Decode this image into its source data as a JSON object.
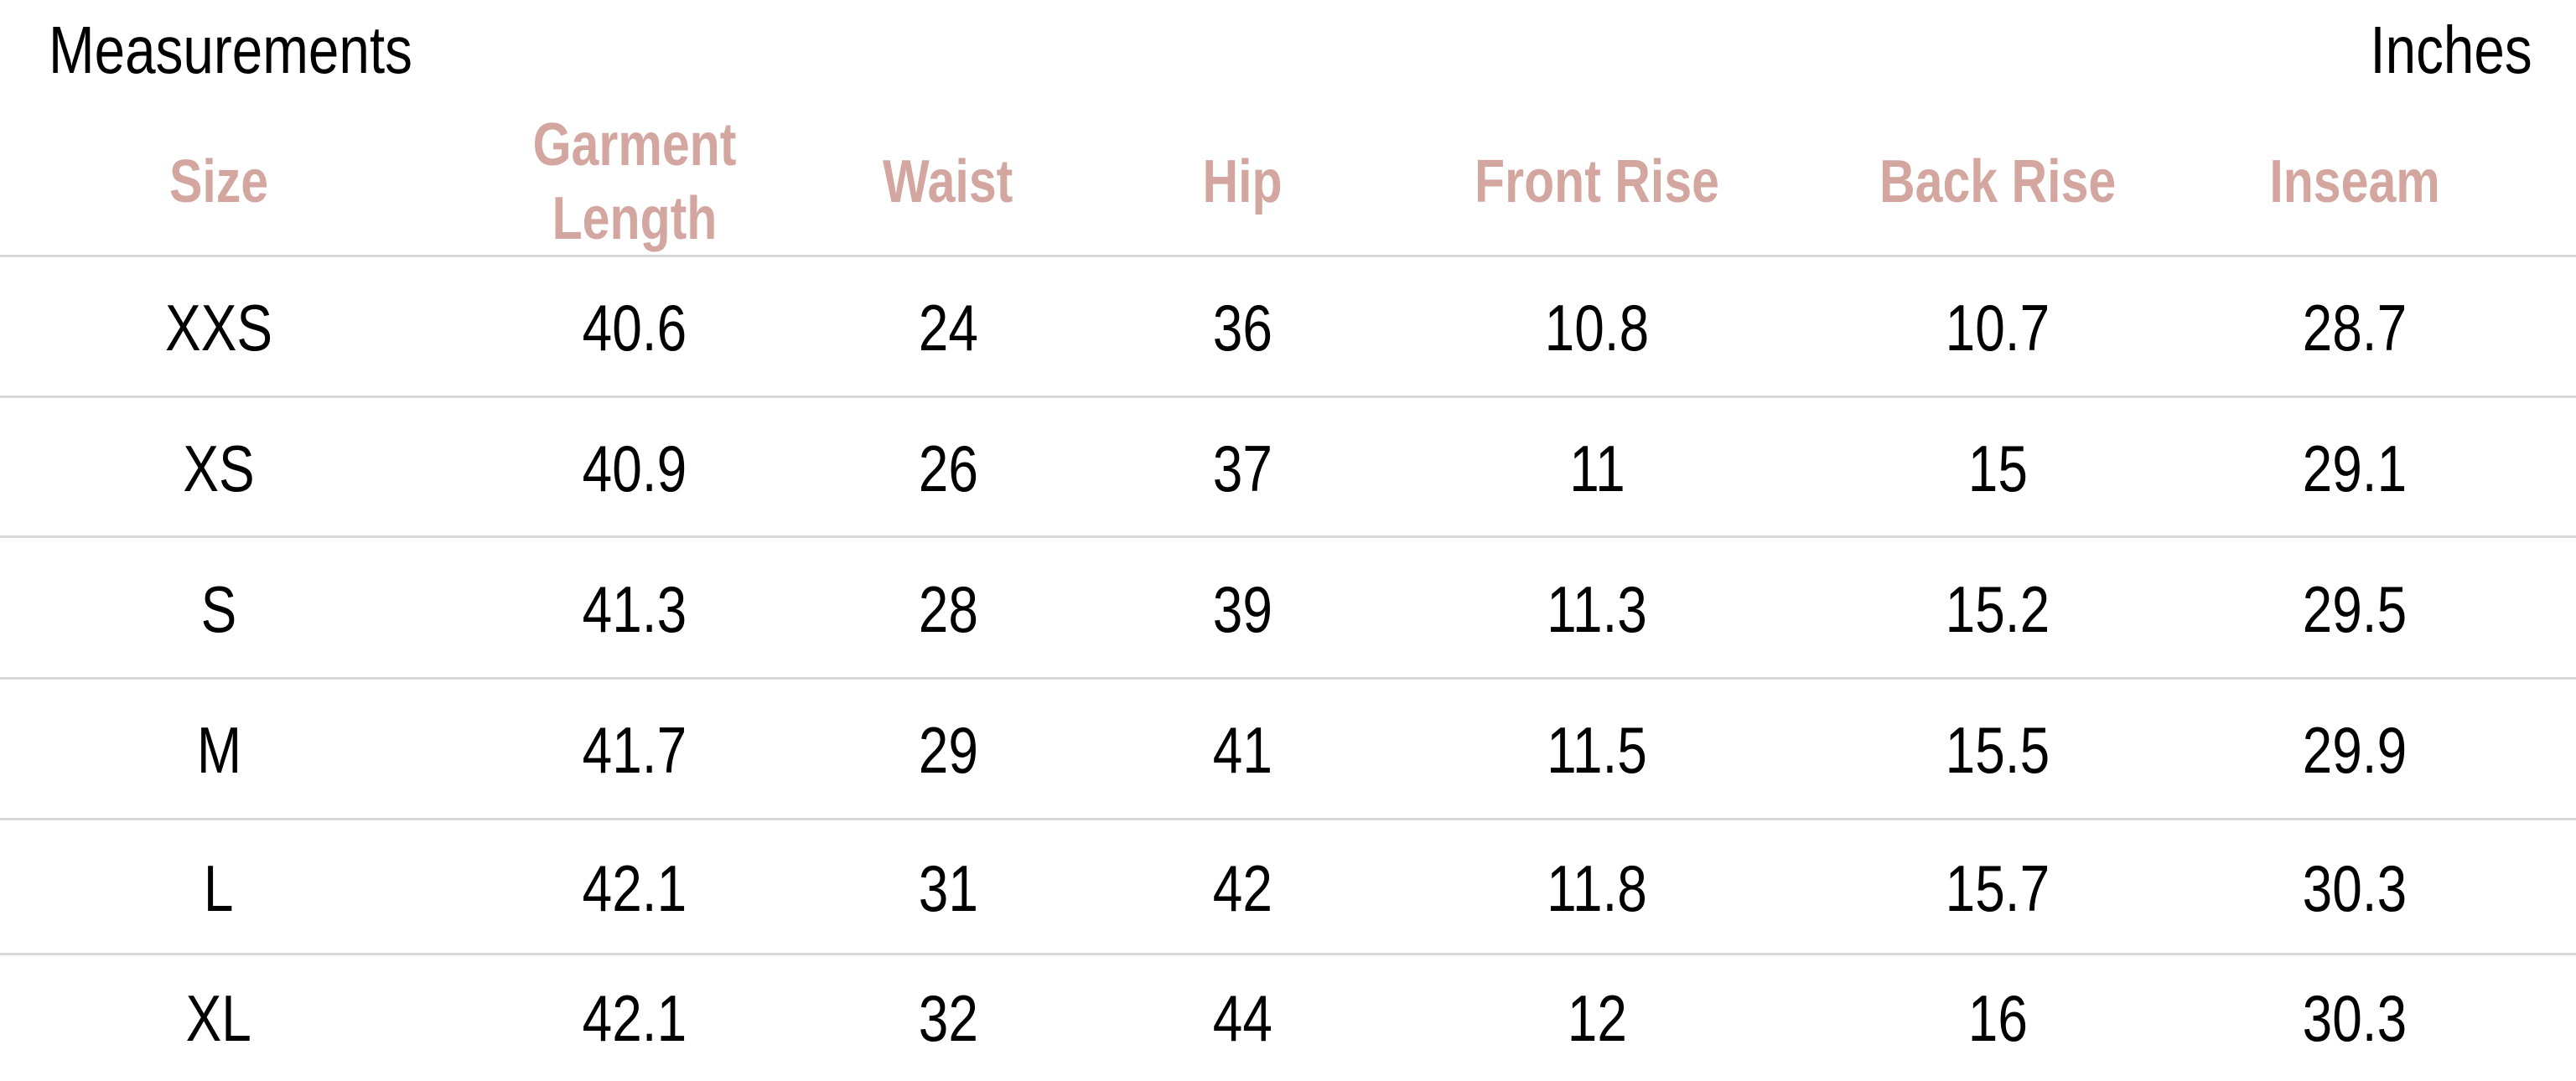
{
  "header": {
    "title": "Measurements",
    "unit": "Inches"
  },
  "colors": {
    "header_text": "#d3a7a0",
    "divider": "#d8d8d8"
  },
  "table": {
    "columns": [
      "Size",
      "Garment Length",
      "Waist",
      "Hip",
      "Front Rise",
      "Back Rise",
      "Inseam"
    ],
    "rows": [
      [
        "XXS",
        "40.6",
        "24",
        "36",
        "10.8",
        "10.7",
        "28.7"
      ],
      [
        "XS",
        "40.9",
        "26",
        "37",
        "11",
        "15",
        "29.1"
      ],
      [
        "S",
        "41.3",
        "28",
        "39",
        "11.3",
        "15.2",
        "29.5"
      ],
      [
        "M",
        "41.7",
        "29",
        "41",
        "11.5",
        "15.5",
        "29.9"
      ],
      [
        "L",
        "42.1",
        "31",
        "42",
        "11.8",
        "15.7",
        "30.3"
      ],
      [
        "XL",
        "42.1",
        "32",
        "44",
        "12",
        "16",
        "30.3"
      ]
    ]
  }
}
